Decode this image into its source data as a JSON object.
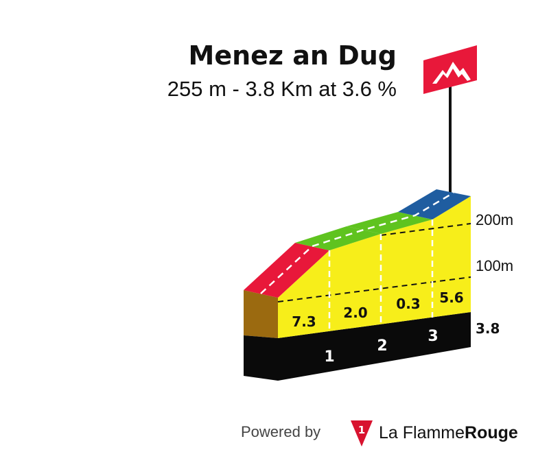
{
  "chart_data": {
    "type": "area",
    "title": "Menez an Dug",
    "subtitle": "255 m - 3.8 Km at 3.6 %",
    "x_km": [
      0,
      1,
      2,
      3,
      3.8
    ],
    "segments": [
      {
        "from_km": 0,
        "to_km": 1,
        "gradient": 7.3,
        "label": "7.3",
        "color": "#e8183a"
      },
      {
        "from_km": 1,
        "to_km": 2,
        "gradient": 2.0,
        "label": "2.0",
        "color": "#5fc31f"
      },
      {
        "from_km": 2,
        "to_km": 3,
        "gradient": 0.3,
        "label": "0.3",
        "color": "#5fc31f"
      },
      {
        "from_km": 3,
        "to_km": 3.8,
        "gradient": 5.6,
        "label": "5.6",
        "color": "#1f5da0"
      }
    ],
    "km_markers": [
      "1",
      "2",
      "3"
    ],
    "total_distance_label": "3.8",
    "y_axis_labels": [
      "200m",
      "100m"
    ],
    "y_axis_values_m": [
      200,
      100
    ],
    "summit_flag_color": "#e8183a",
    "fill_color": "#f7ee1a",
    "base_color": "#0a0a0a"
  },
  "footer": {
    "powered_by": "Powered by",
    "brand_first": "La Flamme",
    "brand_second": "Rouge",
    "logo_glyph": "1"
  }
}
